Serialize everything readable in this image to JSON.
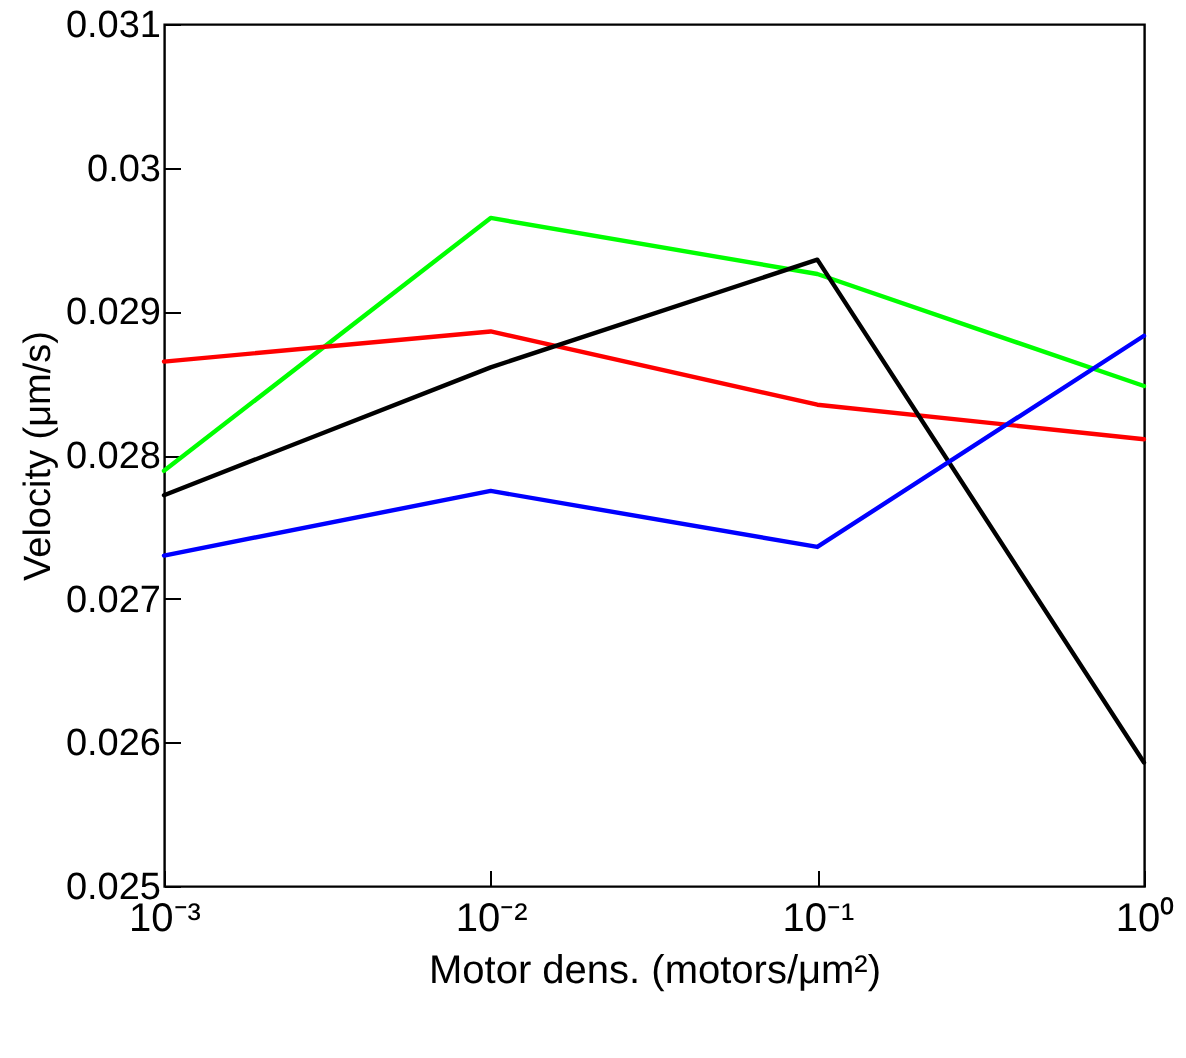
{
  "chart_data": {
    "type": "line",
    "xlabel": "Motor dens. (motors/μm²)",
    "ylabel": "Velocity (μm/s)",
    "x": [
      0.001,
      0.01,
      0.1,
      1
    ],
    "series": [
      {
        "color": "#00ff00",
        "values": [
          0.02789,
          0.02965,
          0.02926,
          0.02848
        ]
      },
      {
        "color": "#ff0000",
        "values": [
          0.02865,
          0.02886,
          0.02835,
          0.02811
        ]
      },
      {
        "color": "#000000",
        "values": [
          0.02772,
          0.02861,
          0.02936,
          0.02586
        ]
      },
      {
        "color": "#0000ff",
        "values": [
          0.0273,
          0.02775,
          0.02736,
          0.02883
        ]
      }
    ],
    "log": "x",
    "xlim": [
      0.001,
      1
    ],
    "ylim": [
      0.025,
      0.031
    ],
    "xticks": [
      {
        "value": 0.001,
        "label": "10⁻³"
      },
      {
        "value": 0.01,
        "label": "10⁻²"
      },
      {
        "value": 0.1,
        "label": "10⁻¹"
      },
      {
        "value": 1,
        "label": "10⁰"
      }
    ],
    "yticks": [
      0.025,
      0.026,
      0.027,
      0.028,
      0.029,
      0.03,
      0.031
    ],
    "marker": "none",
    "line_style": "solid"
  }
}
